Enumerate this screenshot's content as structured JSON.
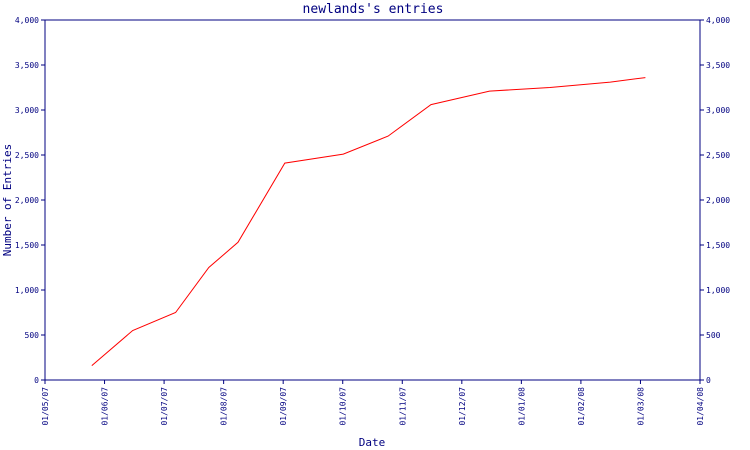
{
  "chart_data": {
    "type": "line",
    "title": "newlands's entries",
    "xlabel": "Date",
    "ylabel": "Number of Entries",
    "x_ticks": [
      "01/05/07",
      "01/06/07",
      "01/07/07",
      "01/08/07",
      "01/09/07",
      "01/10/07",
      "01/11/07",
      "01/12/07",
      "01/01/08",
      "01/02/08",
      "01/03/08",
      "01/04/08"
    ],
    "y_ticks": [
      "0",
      "500",
      "1,000",
      "1,500",
      "2,000",
      "2,500",
      "3,000",
      "3,500",
      "4,000"
    ],
    "ylim": [
      0,
      4000
    ],
    "xlim": [
      "2007-05-01",
      "2008-04-01"
    ],
    "grid": false,
    "series": [
      {
        "color": "#ff0000",
        "x": [
          "2007-05-25",
          "2007-06-15",
          "2007-07-07",
          "2007-07-24",
          "2007-08-08",
          "2007-09-01",
          "2007-10-01",
          "2007-10-24",
          "2007-11-15",
          "2007-12-15",
          "2008-01-15",
          "2008-02-15",
          "2008-03-04"
        ],
        "values": [
          160,
          550,
          750,
          1250,
          1530,
          2410,
          2510,
          2710,
          3060,
          3210,
          3250,
          3310,
          3360
        ]
      }
    ]
  }
}
